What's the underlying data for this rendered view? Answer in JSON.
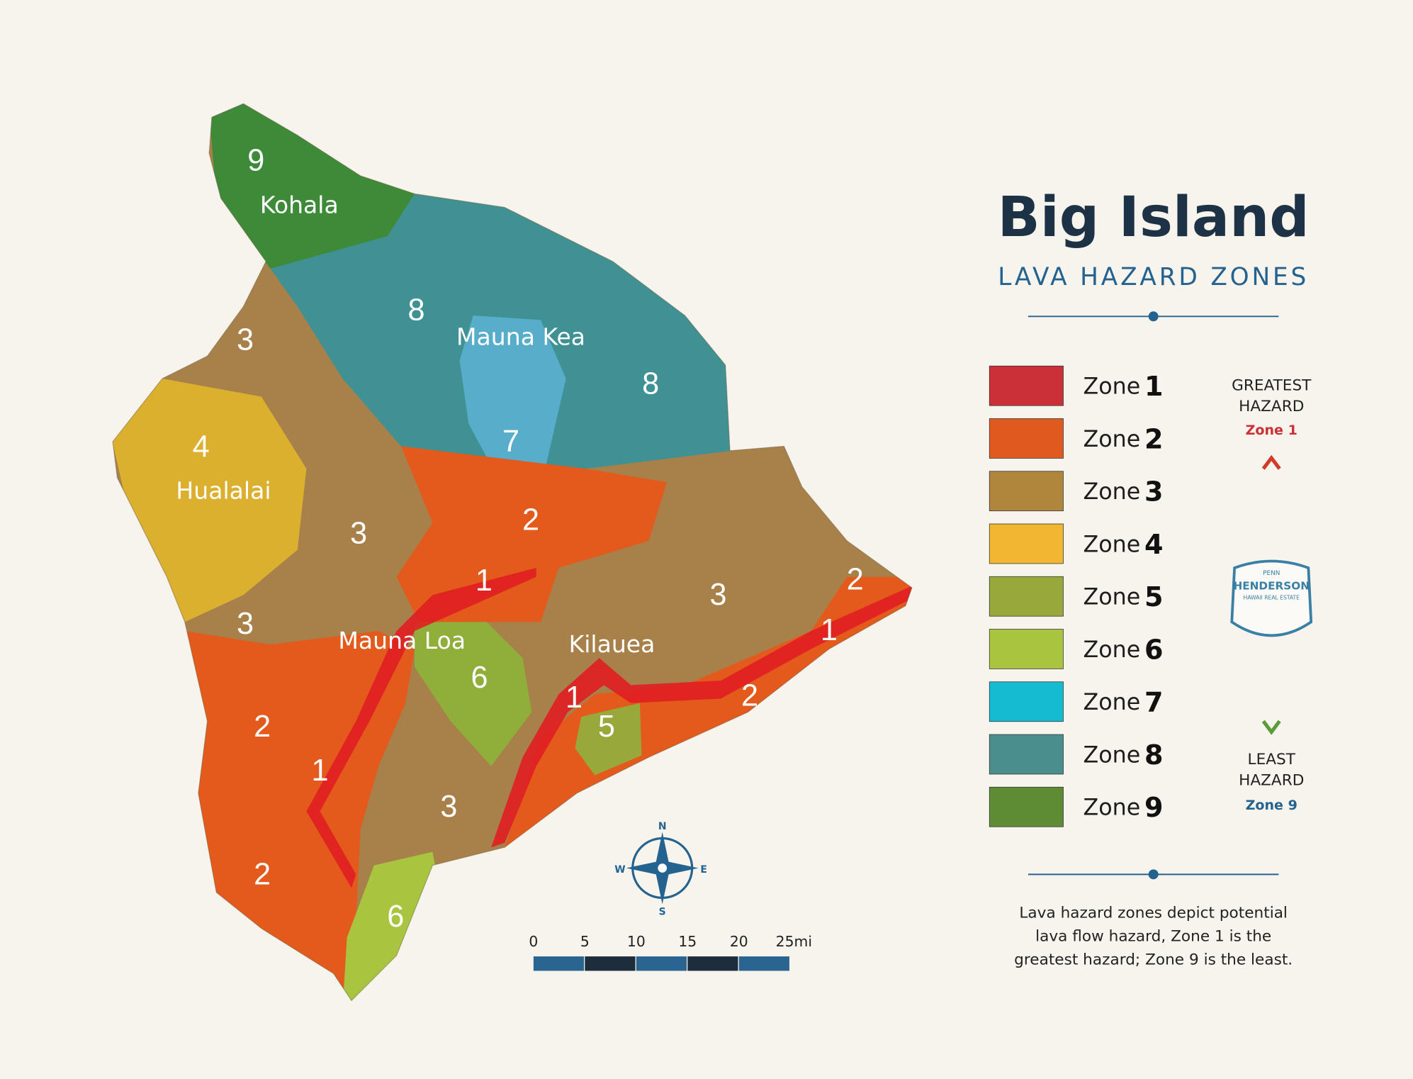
{
  "header": {
    "title": "Big Island",
    "subtitle": "LAVA HAZARD ZONES"
  },
  "legend": {
    "items": [
      {
        "label": "Zone",
        "number": "1",
        "color": "#cc3037"
      },
      {
        "label": "Zone",
        "number": "2",
        "color": "#e0591f"
      },
      {
        "label": "Zone",
        "number": "3",
        "color": "#b0853c"
      },
      {
        "label": "Zone",
        "number": "4",
        "color": "#f2b731"
      },
      {
        "label": "Zone",
        "number": "5",
        "color": "#98a83a"
      },
      {
        "label": "Zone",
        "number": "6",
        "color": "#a9c43e"
      },
      {
        "label": "Zone",
        "number": "7",
        "color": "#13bcd1"
      },
      {
        "label": "Zone",
        "number": "8",
        "color": "#4a8e8e"
      },
      {
        "label": "Zone",
        "number": "9",
        "color": "#5e8c34"
      }
    ]
  },
  "hazard_scale": {
    "top": {
      "lines": [
        "GREATEST",
        "HAZARD"
      ],
      "zone": "Zone 1"
    },
    "bottom": {
      "lines": [
        "LEAST",
        "HAZARD"
      ],
      "zone": "Zone 9"
    }
  },
  "logo": {
    "lines": [
      "PENN",
      "HENDERSON",
      "HAWAII REAL ESTATE"
    ]
  },
  "map": {
    "places": [
      "Kohala",
      "Mauna Kea",
      "Hualalai",
      "Mauna Loa",
      "Kilauea"
    ],
    "zone_labels": [
      "9",
      "8",
      "8",
      "7",
      "3",
      "4",
      "3",
      "2",
      "2",
      "1",
      "3",
      "1",
      "3",
      "6",
      "1",
      "2",
      "5",
      "2",
      "1",
      "3",
      "2",
      "6"
    ]
  },
  "compass": {
    "n": "N",
    "w": "W",
    "e": "E",
    "s": "S"
  },
  "scale_bar": {
    "ticks": [
      "0",
      "5",
      "10",
      "15",
      "20",
      "25mi"
    ]
  },
  "note": {
    "lines": [
      "Lava hazard zones depict potential",
      "lava flow hazard, Zone 1 is the",
      "greatest hazard; Zone 9 is the least."
    ]
  }
}
